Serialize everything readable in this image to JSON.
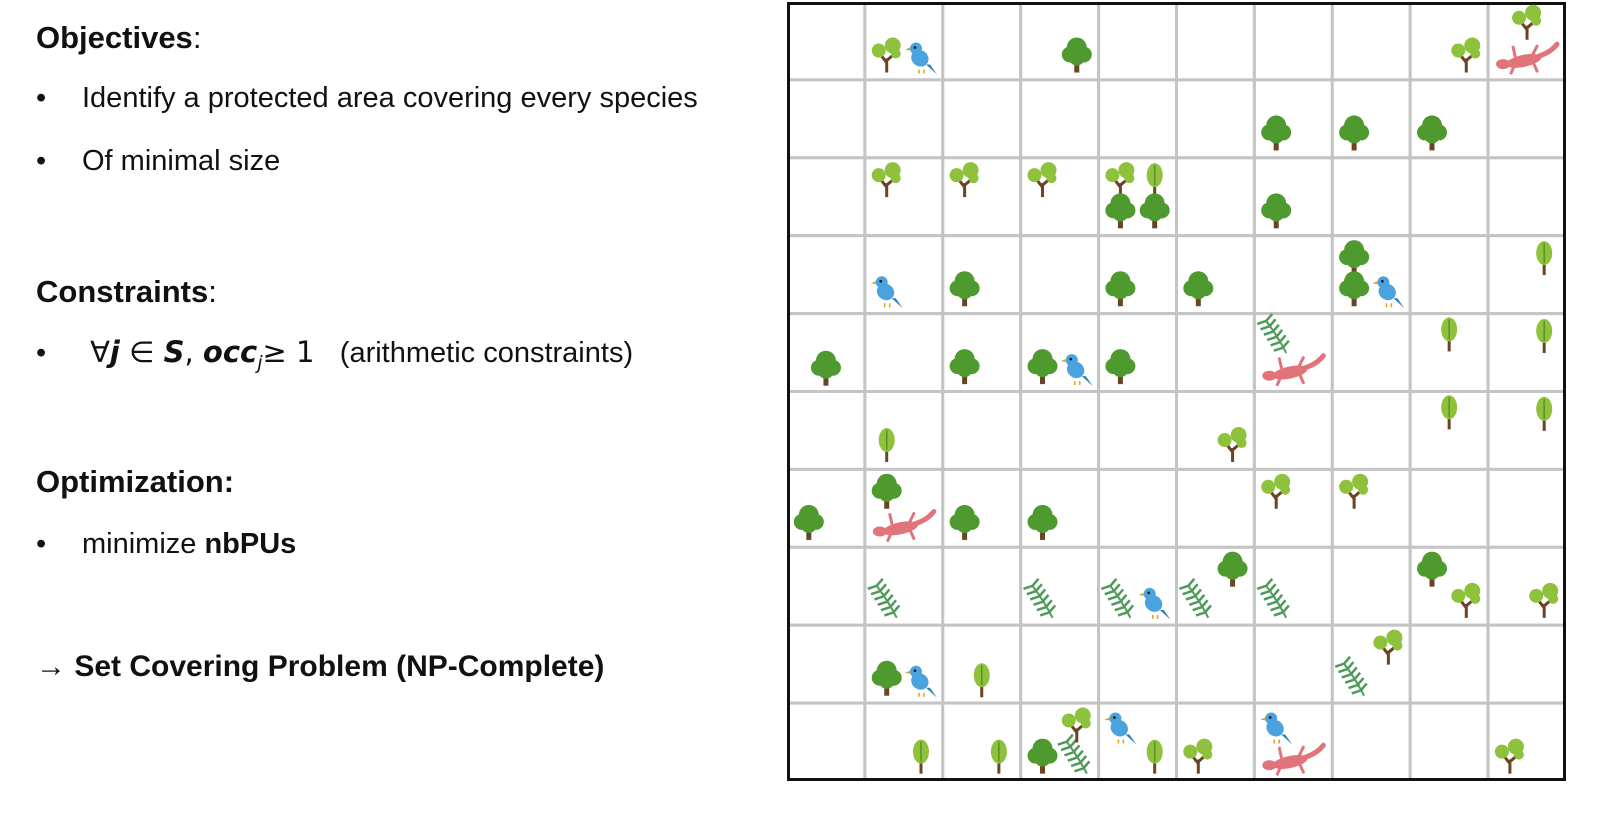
{
  "objectives": {
    "heading": "Objectives",
    "items": [
      "Identify a protected area covering every species",
      "Of minimal size"
    ]
  },
  "constraints": {
    "heading": "Constraints",
    "formula_forall": "∀",
    "formula_j": "j",
    "formula_in": " ∈ ",
    "formula_S": "S",
    "formula_comma": ", ",
    "formula_occ": "occ",
    "formula_sub": "j",
    "formula_geq": "≥ 1",
    "note": "(arithmetic constraints)"
  },
  "optimization": {
    "heading": "Optimization:",
    "prefix": "minimize ",
    "bold": "nbPUs"
  },
  "conclusion": "→ Set Covering Problem (NP-Complete)",
  "bullet": "•",
  "colors": {
    "grid_line": "#c4c4c4",
    "border": "#111111",
    "tree_round": "#4f9a2e",
    "tree_light": "#8fc23c",
    "trunk": "#6b4426",
    "fern": "#4f9a5a",
    "bird": "#4aa3df",
    "lizard": "#e0747a"
  },
  "grid": {
    "rows": 10,
    "cols": 10,
    "icons": [
      {
        "r": 0,
        "c": 1,
        "type": "light-tree",
        "p": "bl"
      },
      {
        "r": 0,
        "c": 1,
        "type": "bird",
        "p": "br"
      },
      {
        "r": 0,
        "c": 3,
        "type": "round-tree",
        "p": "br"
      },
      {
        "r": 0,
        "c": 8,
        "type": "light-tree",
        "p": "br"
      },
      {
        "r": 0,
        "c": 9,
        "type": "light-tree",
        "p": "tc"
      },
      {
        "r": 0,
        "c": 9,
        "type": "lizard",
        "p": "bc"
      },
      {
        "r": 1,
        "c": 6,
        "type": "round-tree",
        "p": "bl"
      },
      {
        "r": 1,
        "c": 7,
        "type": "round-tree",
        "p": "bl"
      },
      {
        "r": 1,
        "c": 8,
        "type": "round-tree",
        "p": "bl"
      },
      {
        "r": 2,
        "c": 1,
        "type": "light-tree",
        "p": "tl"
      },
      {
        "r": 2,
        "c": 2,
        "type": "light-tree",
        "p": "tl"
      },
      {
        "r": 2,
        "c": 3,
        "type": "light-tree",
        "p": "tl"
      },
      {
        "r": 2,
        "c": 4,
        "type": "light-tree",
        "p": "tl"
      },
      {
        "r": 2,
        "c": 4,
        "type": "sapling",
        "p": "tr"
      },
      {
        "r": 2,
        "c": 4,
        "type": "round-tree",
        "p": "bl"
      },
      {
        "r": 2,
        "c": 4,
        "type": "round-tree",
        "p": "br"
      },
      {
        "r": 2,
        "c": 6,
        "type": "round-tree",
        "p": "bl"
      },
      {
        "r": 3,
        "c": 1,
        "type": "bird",
        "p": "bl"
      },
      {
        "r": 3,
        "c": 2,
        "type": "round-tree",
        "p": "bl"
      },
      {
        "r": 3,
        "c": 4,
        "type": "round-tree",
        "p": "bl"
      },
      {
        "r": 3,
        "c": 5,
        "type": "round-tree",
        "p": "bl"
      },
      {
        "r": 3,
        "c": 7,
        "type": "round-tree",
        "p": "tl"
      },
      {
        "r": 3,
        "c": 7,
        "type": "round-tree",
        "p": "bl"
      },
      {
        "r": 3,
        "c": 7,
        "type": "bird",
        "p": "br"
      },
      {
        "r": 3,
        "c": 9,
        "type": "sapling",
        "p": "tr"
      },
      {
        "r": 4,
        "c": 0,
        "type": "round-tree",
        "p": "bc"
      },
      {
        "r": 4,
        "c": 2,
        "type": "round-tree",
        "p": "bl"
      },
      {
        "r": 4,
        "c": 3,
        "type": "round-tree",
        "p": "bl"
      },
      {
        "r": 4,
        "c": 3,
        "type": "bird",
        "p": "br"
      },
      {
        "r": 4,
        "c": 4,
        "type": "round-tree",
        "p": "bl"
      },
      {
        "r": 4,
        "c": 6,
        "type": "fern",
        "p": "tl"
      },
      {
        "r": 4,
        "c": 6,
        "type": "lizard",
        "p": "bc"
      },
      {
        "r": 4,
        "c": 8,
        "type": "sapling",
        "p": "tc"
      },
      {
        "r": 4,
        "c": 9,
        "type": "sapling",
        "p": "tr"
      },
      {
        "r": 5,
        "c": 1,
        "type": "sapling",
        "p": "bl"
      },
      {
        "r": 5,
        "c": 5,
        "type": "light-tree",
        "p": "br"
      },
      {
        "r": 5,
        "c": 8,
        "type": "sapling",
        "p": "tc"
      },
      {
        "r": 5,
        "c": 9,
        "type": "sapling",
        "p": "tr"
      },
      {
        "r": 6,
        "c": 0,
        "type": "round-tree",
        "p": "bl"
      },
      {
        "r": 6,
        "c": 1,
        "type": "round-tree",
        "p": "tl"
      },
      {
        "r": 6,
        "c": 1,
        "type": "lizard",
        "p": "bc"
      },
      {
        "r": 6,
        "c": 2,
        "type": "round-tree",
        "p": "bl"
      },
      {
        "r": 6,
        "c": 3,
        "type": "round-tree",
        "p": "bl"
      },
      {
        "r": 6,
        "c": 6,
        "type": "light-tree",
        "p": "tl"
      },
      {
        "r": 6,
        "c": 7,
        "type": "light-tree",
        "p": "tl"
      },
      {
        "r": 7,
        "c": 1,
        "type": "fern",
        "p": "bl"
      },
      {
        "r": 7,
        "c": 3,
        "type": "fern",
        "p": "bl"
      },
      {
        "r": 7,
        "c": 4,
        "type": "fern",
        "p": "bl"
      },
      {
        "r": 7,
        "c": 4,
        "type": "bird",
        "p": "br"
      },
      {
        "r": 7,
        "c": 5,
        "type": "fern",
        "p": "bl"
      },
      {
        "r": 7,
        "c": 5,
        "type": "round-tree",
        "p": "tr"
      },
      {
        "r": 7,
        "c": 6,
        "type": "fern",
        "p": "bl"
      },
      {
        "r": 7,
        "c": 8,
        "type": "round-tree",
        "p": "tl"
      },
      {
        "r": 7,
        "c": 8,
        "type": "light-tree",
        "p": "br"
      },
      {
        "r": 7,
        "c": 9,
        "type": "light-tree",
        "p": "br"
      },
      {
        "r": 8,
        "c": 1,
        "type": "round-tree",
        "p": "bl"
      },
      {
        "r": 8,
        "c": 1,
        "type": "bird",
        "p": "br"
      },
      {
        "r": 8,
        "c": 2,
        "type": "sapling",
        "p": "bc"
      },
      {
        "r": 8,
        "c": 7,
        "type": "light-tree",
        "p": "tr"
      },
      {
        "r": 8,
        "c": 7,
        "type": "fern",
        "p": "bl"
      },
      {
        "r": 9,
        "c": 1,
        "type": "sapling",
        "p": "br"
      },
      {
        "r": 9,
        "c": 2,
        "type": "sapling",
        "p": "br"
      },
      {
        "r": 9,
        "c": 3,
        "type": "round-tree",
        "p": "bl"
      },
      {
        "r": 9,
        "c": 3,
        "type": "fern",
        "p": "br"
      },
      {
        "r": 9,
        "c": 3,
        "type": "light-tree",
        "p": "tr"
      },
      {
        "r": 9,
        "c": 4,
        "type": "bird",
        "p": "tl"
      },
      {
        "r": 9,
        "c": 4,
        "type": "sapling",
        "p": "br"
      },
      {
        "r": 9,
        "c": 5,
        "type": "light-tree",
        "p": "bl"
      },
      {
        "r": 9,
        "c": 6,
        "type": "bird",
        "p": "tl"
      },
      {
        "r": 9,
        "c": 6,
        "type": "lizard",
        "p": "bc"
      },
      {
        "r": 9,
        "c": 9,
        "type": "light-tree",
        "p": "bl"
      }
    ]
  }
}
